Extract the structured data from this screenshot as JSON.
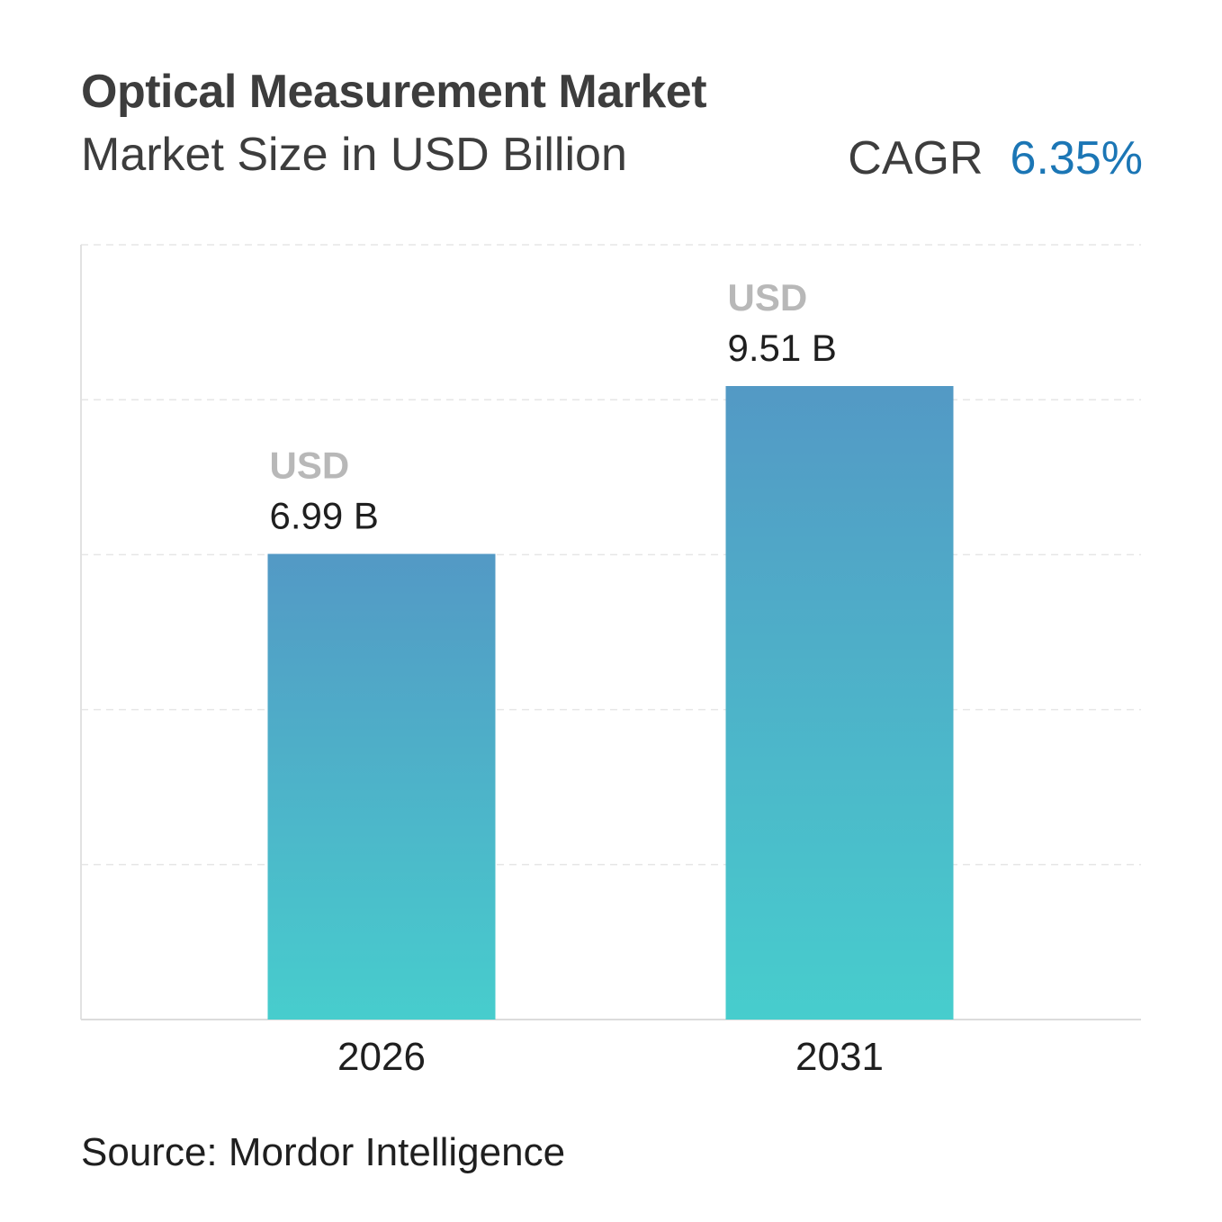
{
  "header": {
    "title": "Optical Measurement Market",
    "subtitle": "Market Size in USD Billion",
    "cagr_label": "CAGR",
    "cagr_value": "6.35%"
  },
  "footer": {
    "source": "Source: Mordor Intelligence"
  },
  "colors": {
    "bar_top": "#5399c5",
    "bar_bottom": "#47cdcd",
    "cagr_accent": "#1b76b5"
  },
  "chart_data": {
    "type": "bar",
    "categories": [
      "2026",
      "2031"
    ],
    "values": [
      6.99,
      9.51
    ],
    "value_labels": [
      "6.99 B",
      "9.51 B"
    ],
    "value_unit_label": "USD",
    "title": "Optical Measurement Market",
    "subtitle": "Market Size in USD Billion",
    "grid": true
  }
}
